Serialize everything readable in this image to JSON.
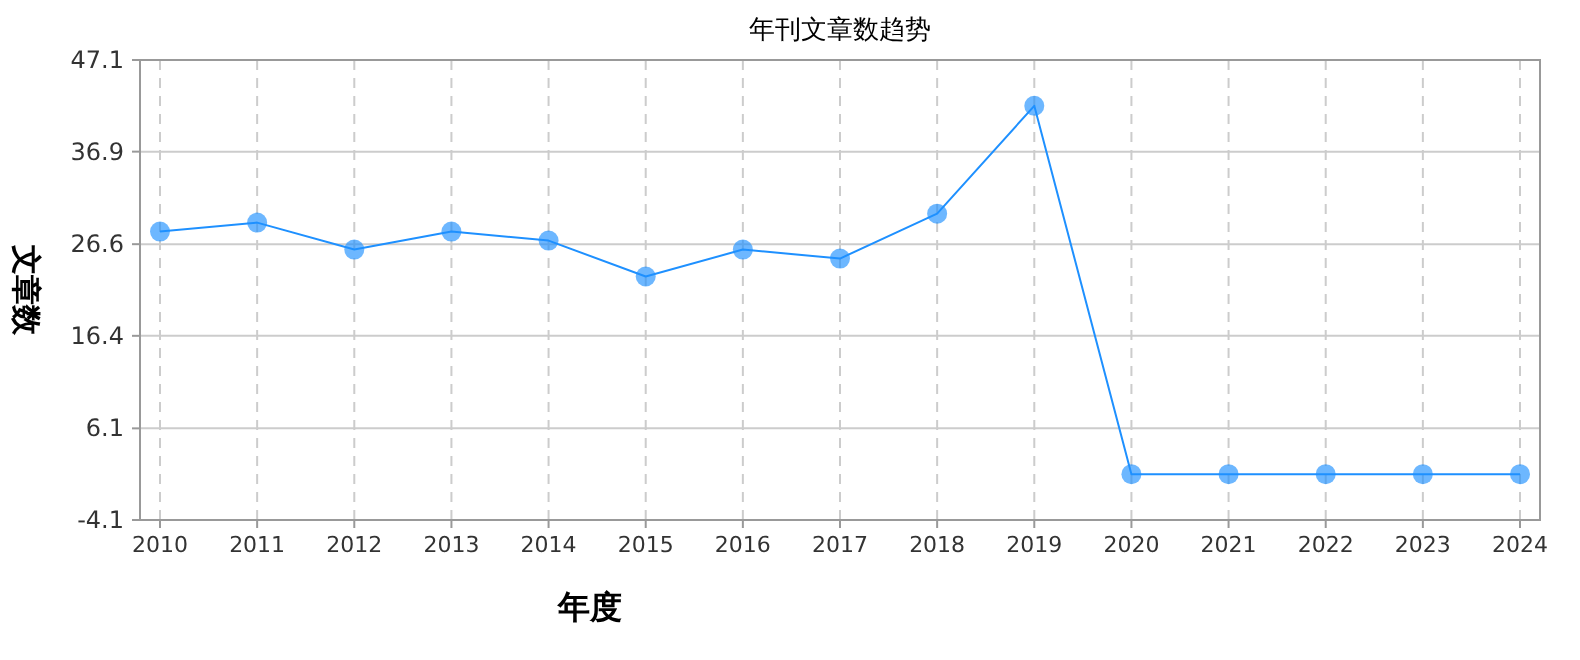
{
  "chart_data": {
    "type": "line",
    "title": "年刊文章数趋势",
    "xlabel": "年度",
    "ylabel": "文章数",
    "categories": [
      "2010",
      "2011",
      "2012",
      "2013",
      "2014",
      "2015",
      "2016",
      "2017",
      "2018",
      "2019",
      "2020",
      "2021",
      "2022",
      "2023",
      "2024"
    ],
    "series": [
      {
        "color": "#1e90ff",
        "values": [
          28,
          29,
          26,
          28,
          27,
          23,
          26,
          25,
          30,
          42,
          1,
          1,
          1,
          1,
          1
        ]
      }
    ],
    "ylim": [
      -4.1,
      47.1
    ],
    "yticks": [
      -4.1,
      6.1,
      16.4,
      26.6,
      36.9,
      47.1
    ],
    "grid": true,
    "marker": "circle"
  }
}
